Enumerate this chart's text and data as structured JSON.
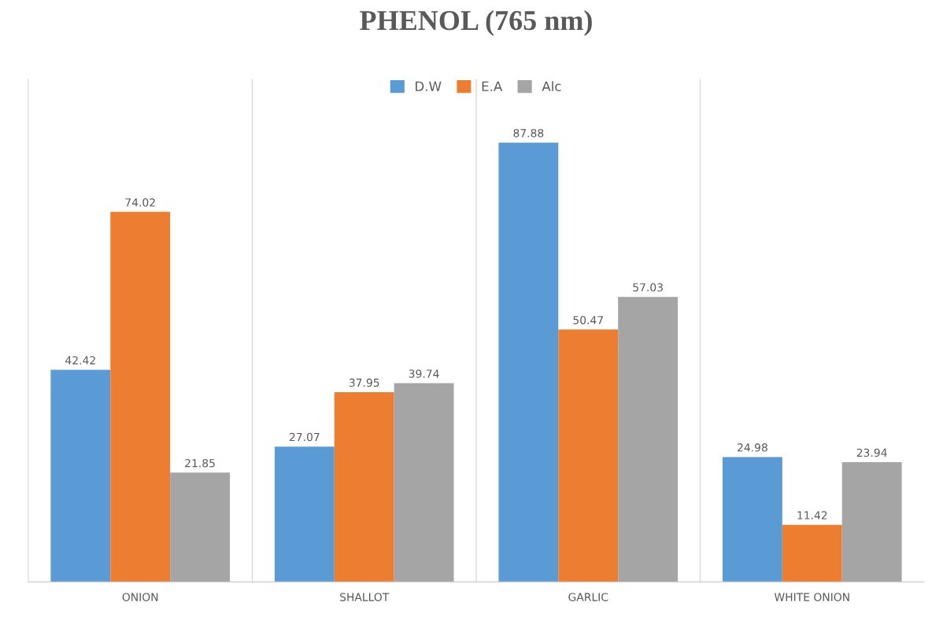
{
  "chart_data": {
    "type": "bar",
    "title": "PHENOL (765 nm)",
    "categories": [
      "ONION",
      "SHALLOT",
      "GARLIC",
      "WHITE ONION"
    ],
    "series": [
      {
        "name": "D.W",
        "color": "#5b9bd5",
        "values": [
          42.42,
          27.07,
          87.88,
          24.98
        ]
      },
      {
        "name": "E.A",
        "color": "#ed7d31",
        "values": [
          74.02,
          37.95,
          50.47,
          11.42
        ]
      },
      {
        "name": "Alc",
        "color": "#a5a5a5",
        "values": [
          21.85,
          39.74,
          57.03,
          23.94
        ]
      }
    ],
    "data_labels": true,
    "grid": "x",
    "legend": "top",
    "tick_labels": "x"
  }
}
